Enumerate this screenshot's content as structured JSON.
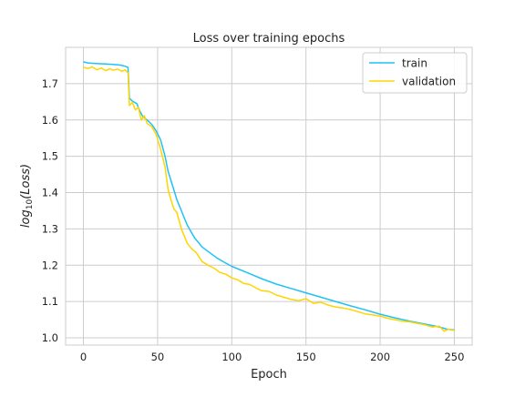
{
  "chart_data": {
    "type": "line",
    "title": "Loss over training epochs",
    "xlabel": "Epoch",
    "ylabel_base": "log",
    "ylabel_sub": "10",
    "ylabel_arg": "(Loss)",
    "xlim": [
      -12,
      262
    ],
    "ylim": [
      0.98,
      1.8
    ],
    "xticks": [
      0,
      50,
      100,
      150,
      200,
      250
    ],
    "yticks": [
      1.0,
      1.1,
      1.2,
      1.3,
      1.4,
      1.5,
      1.6,
      1.7
    ],
    "ytick_labels": [
      "1.0",
      "1.1",
      "1.2",
      "1.3",
      "1.4",
      "1.5",
      "1.6",
      "1.7"
    ],
    "xtick_labels": [
      "0",
      "50",
      "100",
      "150",
      "200",
      "250"
    ],
    "grid": true,
    "legend_position": "top-right",
    "series": [
      {
        "name": "train",
        "color": "#1ec2f5",
        "x": [
          0,
          3,
          6,
          10,
          15,
          20,
          25,
          28,
          30,
          31,
          33,
          36,
          38,
          40,
          43,
          46,
          49,
          52,
          55,
          57,
          60,
          63,
          66,
          70,
          75,
          80,
          85,
          90,
          95,
          100,
          110,
          120,
          130,
          140,
          150,
          160,
          170,
          180,
          190,
          200,
          210,
          220,
          230,
          240,
          245,
          250
        ],
        "values": [
          1.76,
          1.757,
          1.756,
          1.755,
          1.754,
          1.753,
          1.751,
          1.748,
          1.745,
          1.66,
          1.652,
          1.645,
          1.625,
          1.61,
          1.6,
          1.588,
          1.57,
          1.545,
          1.5,
          1.46,
          1.42,
          1.38,
          1.35,
          1.31,
          1.275,
          1.25,
          1.235,
          1.22,
          1.208,
          1.197,
          1.18,
          1.163,
          1.148,
          1.136,
          1.124,
          1.112,
          1.1,
          1.088,
          1.077,
          1.065,
          1.055,
          1.046,
          1.038,
          1.03,
          1.024,
          1.022
        ]
      },
      {
        "name": "validation",
        "color": "#ffd500",
        "x": [
          0,
          3,
          6,
          9,
          12,
          15,
          18,
          20,
          23,
          26,
          28,
          30,
          31,
          33,
          35,
          37,
          39,
          41,
          43,
          46,
          49,
          52,
          55,
          57,
          59,
          61,
          63,
          66,
          70,
          73,
          76,
          80,
          84,
          88,
          92,
          96,
          100,
          104,
          108,
          112,
          116,
          120,
          125,
          130,
          135,
          140,
          145,
          150,
          155,
          160,
          165,
          170,
          175,
          180,
          185,
          190,
          195,
          200,
          205,
          210,
          215,
          220,
          225,
          230,
          235,
          240,
          243,
          246,
          250
        ],
        "values": [
          1.745,
          1.742,
          1.746,
          1.738,
          1.743,
          1.736,
          1.741,
          1.737,
          1.74,
          1.734,
          1.738,
          1.73,
          1.64,
          1.648,
          1.628,
          1.635,
          1.6,
          1.612,
          1.59,
          1.582,
          1.56,
          1.52,
          1.47,
          1.41,
          1.38,
          1.355,
          1.345,
          1.3,
          1.26,
          1.245,
          1.235,
          1.21,
          1.2,
          1.192,
          1.18,
          1.175,
          1.165,
          1.16,
          1.15,
          1.147,
          1.138,
          1.13,
          1.128,
          1.118,
          1.112,
          1.106,
          1.102,
          1.108,
          1.095,
          1.098,
          1.09,
          1.085,
          1.082,
          1.078,
          1.072,
          1.066,
          1.063,
          1.06,
          1.054,
          1.05,
          1.046,
          1.044,
          1.04,
          1.036,
          1.03,
          1.032,
          1.018,
          1.024,
          1.02
        ]
      }
    ]
  }
}
